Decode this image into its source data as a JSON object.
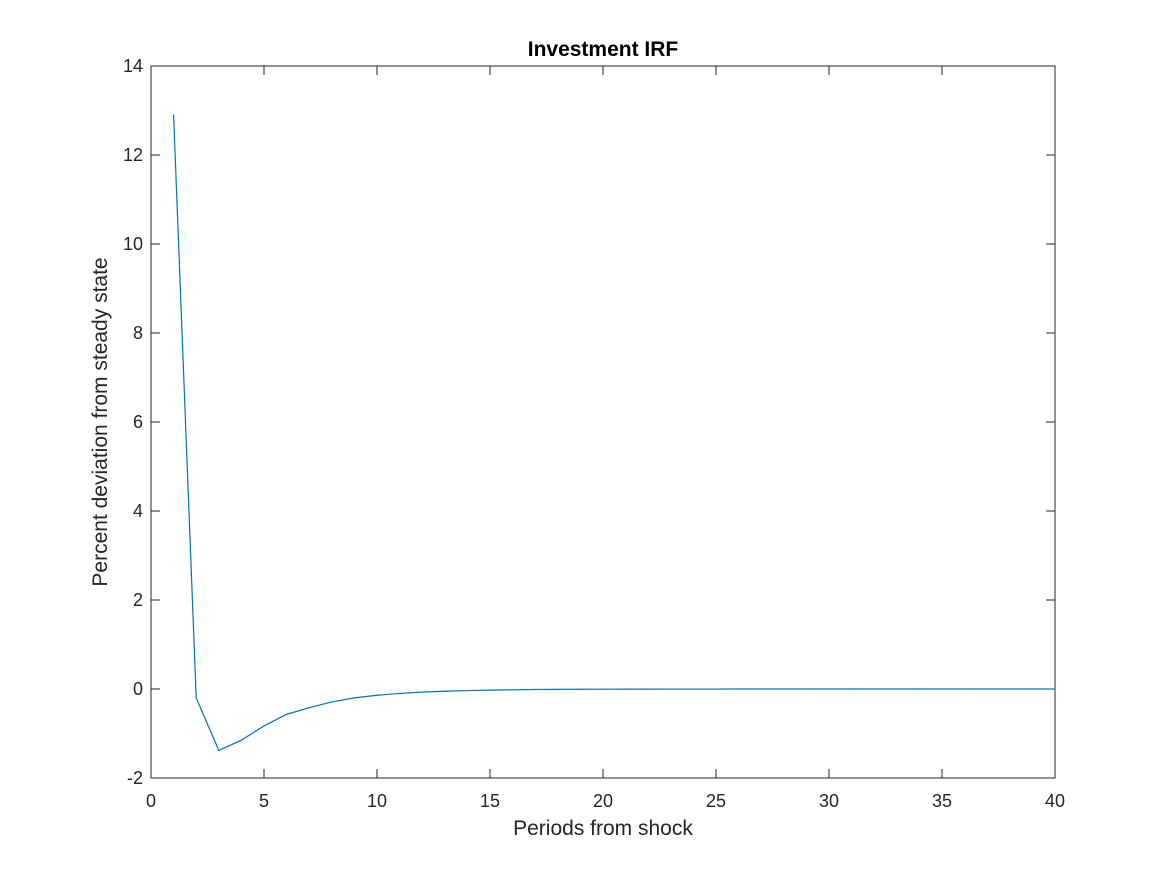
{
  "chart_data": {
    "type": "line",
    "title": "Investment IRF",
    "xlabel": "Periods from shock",
    "ylabel": "Percent deviation from steady state",
    "xlim": [
      0,
      40
    ],
    "ylim": [
      -2,
      14
    ],
    "xticks": [
      0,
      5,
      10,
      15,
      20,
      25,
      30,
      35,
      40
    ],
    "yticks": [
      -2,
      0,
      2,
      4,
      6,
      8,
      10,
      12,
      14
    ],
    "grid": false,
    "series": [
      {
        "color": "#0072BD",
        "x": [
          1,
          2,
          3,
          4,
          5,
          6,
          7,
          8,
          9,
          10,
          11,
          12,
          13,
          14,
          15,
          16,
          17,
          18,
          19,
          20,
          21,
          22,
          23,
          24,
          25,
          26,
          27,
          28,
          29,
          30,
          31,
          32,
          33,
          34,
          35,
          36,
          37,
          38,
          39,
          40
        ],
        "y": [
          12.9,
          -0.2,
          -1.38,
          -1.15,
          -0.83,
          -0.57,
          -0.42,
          -0.29,
          -0.2,
          -0.14,
          -0.1,
          -0.07,
          -0.05,
          -0.035,
          -0.025,
          -0.018,
          -0.012,
          -0.008,
          -0.006,
          -0.004,
          -0.003,
          -0.002,
          -0.001,
          -0.001,
          -0.001,
          0,
          0,
          0,
          0,
          0,
          0,
          0,
          0,
          0,
          0,
          0,
          0,
          0,
          0,
          0
        ]
      }
    ]
  }
}
